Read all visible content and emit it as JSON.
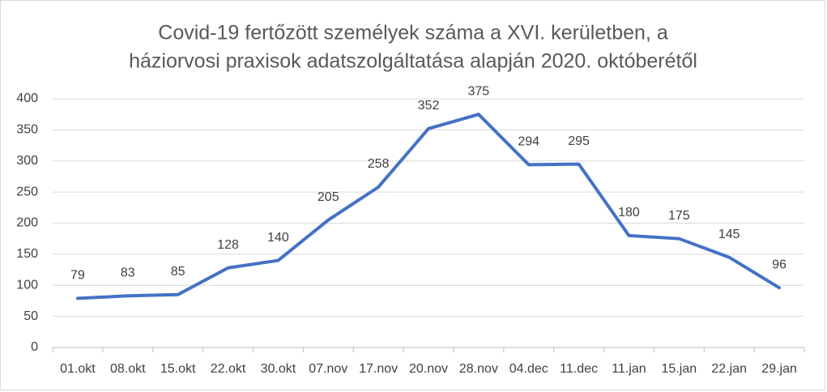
{
  "chart_data": {
    "type": "line",
    "title": [
      "Covid-19 fertőzött személyek száma a XVI. kerületben, a",
      "háziorvosi praxisok adatszolgáltatása alapján 2020. októberétől"
    ],
    "categories": [
      "01.okt",
      "08.okt",
      "15.okt",
      "22.okt",
      "30.okt",
      "07.nov",
      "17.nov",
      "20.nov",
      "28.nov",
      "04.dec",
      "11.dec",
      "11.jan",
      "15.jan",
      "22.jan",
      "29.jan"
    ],
    "values": [
      79,
      83,
      85,
      128,
      140,
      205,
      258,
      352,
      375,
      294,
      295,
      180,
      175,
      145,
      96
    ],
    "color": "#4472c4",
    "ylim": [
      0,
      400
    ],
    "yticks": [
      0,
      50,
      100,
      150,
      200,
      250,
      300,
      350,
      400
    ],
    "grid": true
  }
}
